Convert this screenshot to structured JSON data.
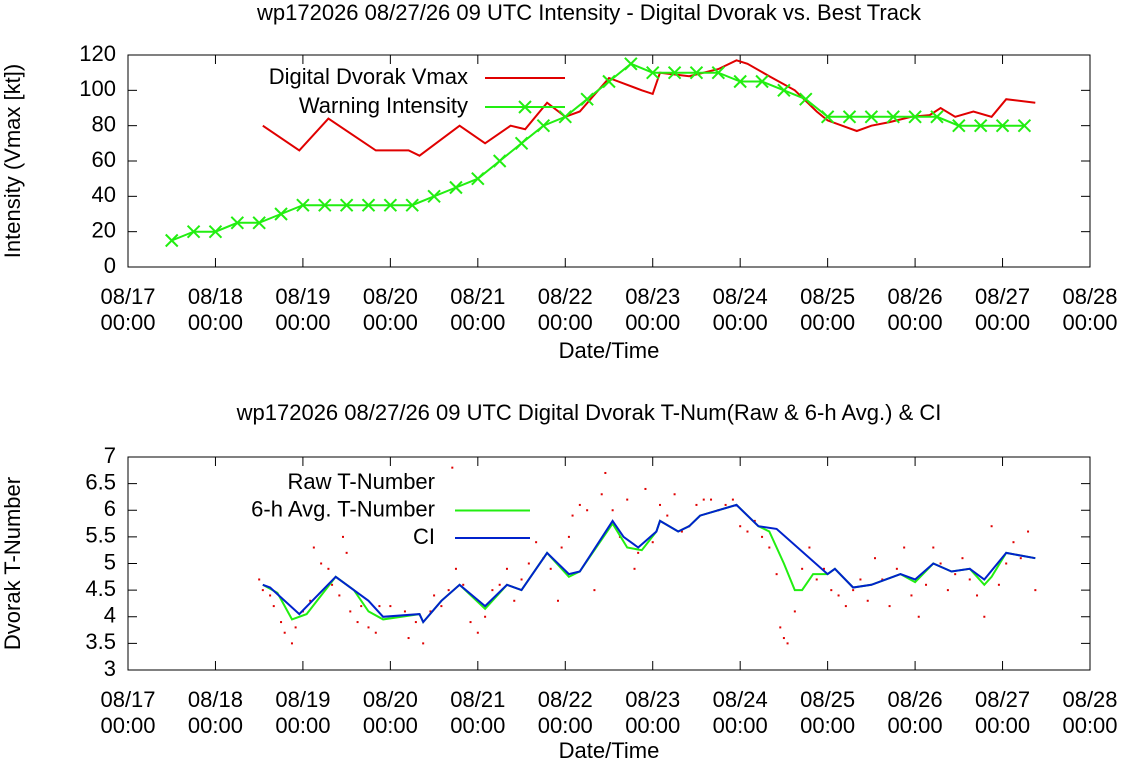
{
  "chart_data": [
    {
      "type": "line",
      "title": "wp172026 08/27/26  09 UTC Intensity - Digital Dvorak vs. Best Track",
      "xlabel": "Date/Time",
      "ylabel": "Intensity (Vmax [kt])",
      "xlim": [
        0,
        264
      ],
      "xticks": [
        {
          "value": 0,
          "label": "08/17 00:00"
        },
        {
          "value": 24,
          "label": "08/18 00:00"
        },
        {
          "value": 48,
          "label": "08/19 00:00"
        },
        {
          "value": 72,
          "label": "08/20 00:00"
        },
        {
          "value": 96,
          "label": "08/21 00:00"
        },
        {
          "value": 120,
          "label": "08/22 00:00"
        },
        {
          "value": 144,
          "label": "08/23 00:00"
        },
        {
          "value": 168,
          "label": "08/24 00:00"
        },
        {
          "value": 192,
          "label": "08/25 00:00"
        },
        {
          "value": 216,
          "label": "08/26 00:00"
        },
        {
          "value": 240,
          "label": "08/27 00:00"
        },
        {
          "value": 264,
          "label": "08/28 00:00"
        }
      ],
      "ylim": [
        0,
        120
      ],
      "yticks": [
        0,
        20,
        40,
        60,
        80,
        100,
        120
      ],
      "legend": "top-left",
      "series": [
        {
          "name": "Digital Dvorak Vmax",
          "color": "#e00000",
          "line": true,
          "marker": null,
          "x": [
            37,
            47,
            55,
            68,
            77,
            80,
            91,
            98,
            105,
            109,
            115,
            120,
            124,
            132,
            141,
            144,
            146,
            154,
            162,
            167,
            170,
            176,
            183,
            189,
            192,
            200,
            204,
            209,
            215,
            220,
            223,
            227,
            232,
            237,
            241,
            249
          ],
          "values": [
            80,
            66,
            84,
            66,
            66,
            63,
            80,
            70,
            80,
            78,
            93,
            85,
            88,
            107,
            100,
            98,
            110,
            108,
            112,
            117,
            115,
            108,
            100,
            88,
            83,
            77,
            80,
            82,
            85,
            86,
            90,
            85,
            88,
            85,
            95,
            93
          ]
        },
        {
          "name": "Warning Intensity",
          "color": "#22ee11",
          "line": true,
          "marker": "x",
          "x": [
            12,
            18,
            24,
            30,
            36,
            42,
            48,
            54,
            60,
            66,
            72,
            78,
            84,
            90,
            96,
            102,
            108,
            114,
            120,
            126,
            132,
            138,
            144,
            150,
            156,
            162,
            168,
            174,
            180,
            186,
            192,
            198,
            204,
            210,
            216,
            222,
            228,
            234,
            240,
            246
          ],
          "values": [
            15,
            20,
            20,
            25,
            25,
            30,
            35,
            35,
            35,
            35,
            35,
            35,
            40,
            45,
            50,
            60,
            70,
            80,
            85,
            95,
            105,
            115,
            110,
            110,
            110,
            110,
            105,
            105,
            100,
            95,
            85,
            85,
            85,
            85,
            85,
            85,
            80,
            80,
            80,
            80
          ]
        }
      ]
    },
    {
      "type": "line",
      "title": "wp172026 08/27/26  09 UTC Digital Dvorak T-Num(Raw & 6-h Avg.) & CI",
      "xlabel": "Date/Time",
      "ylabel": "Dvorak T-Number",
      "xlim": [
        0,
        264
      ],
      "xticks": [
        {
          "value": 0,
          "label": "08/17 00:00"
        },
        {
          "value": 24,
          "label": "08/18 00:00"
        },
        {
          "value": 48,
          "label": "08/19 00:00"
        },
        {
          "value": 72,
          "label": "08/20 00:00"
        },
        {
          "value": 96,
          "label": "08/21 00:00"
        },
        {
          "value": 120,
          "label": "08/22 00:00"
        },
        {
          "value": 144,
          "label": "08/23 00:00"
        },
        {
          "value": 168,
          "label": "08/24 00:00"
        },
        {
          "value": 192,
          "label": "08/25 00:00"
        },
        {
          "value": 216,
          "label": "08/26 00:00"
        },
        {
          "value": 240,
          "label": "08/27 00:00"
        },
        {
          "value": 264,
          "label": "08/28 00:00"
        }
      ],
      "ylim": [
        3,
        7
      ],
      "yticks": [
        3,
        3.5,
        4,
        4.5,
        5,
        5.5,
        6,
        6.5,
        7
      ],
      "legend": "top-left",
      "series": [
        {
          "name": "Raw T-Number",
          "color": "#e00000",
          "line": false,
          "marker": "dot",
          "x": [
            36,
            37,
            39,
            40,
            42,
            43,
            45,
            46,
            48,
            50,
            51,
            53,
            55,
            56,
            58,
            59,
            60,
            61,
            63,
            64,
            66,
            68,
            69,
            72,
            74,
            76,
            77,
            79,
            81,
            83,
            84,
            86,
            88,
            89,
            90,
            92,
            94,
            96,
            98,
            100,
            102,
            104,
            106,
            108,
            110,
            112,
            114,
            116,
            118,
            119,
            121,
            122,
            124,
            126,
            128,
            130,
            131,
            133,
            135,
            137,
            139,
            140,
            142,
            144,
            146,
            148,
            150,
            152,
            154,
            156,
            158,
            160,
            162,
            164,
            166,
            168,
            170,
            172,
            174,
            176,
            178,
            179,
            180,
            181,
            183,
            185,
            187,
            189,
            191,
            193,
            195,
            197,
            199,
            201,
            203,
            205,
            207,
            209,
            211,
            213,
            215,
            217,
            219,
            221,
            223,
            225,
            227,
            229,
            231,
            233,
            235,
            237,
            239,
            241,
            243,
            245,
            247,
            249
          ],
          "values": [
            4.7,
            4.5,
            4.4,
            4.2,
            3.9,
            3.7,
            3.5,
            3.8,
            4.1,
            4.3,
            5.3,
            5.0,
            4.9,
            4.6,
            4.4,
            5.5,
            5.2,
            4.1,
            3.9,
            4.2,
            3.8,
            3.7,
            4.2,
            4.2,
            4.0,
            4.1,
            3.6,
            3.9,
            3.5,
            4.1,
            4.4,
            4.2,
            4.5,
            6.8,
            4.9,
            4.6,
            3.9,
            3.7,
            4.0,
            4.5,
            4.6,
            4.9,
            4.3,
            4.7,
            5.0,
            5.4,
            5.1,
            4.9,
            4.3,
            5.3,
            5.5,
            5.9,
            6.1,
            6.0,
            4.5,
            6.3,
            6.7,
            6.0,
            5.5,
            6.2,
            4.9,
            5.2,
            6.4,
            5.4,
            6.1,
            5.9,
            6.3,
            5.6,
            5.7,
            6.1,
            6.2,
            6.2,
            6.0,
            6.1,
            6.2,
            5.7,
            5.6,
            5.8,
            5.5,
            5.3,
            4.8,
            3.8,
            3.6,
            3.5,
            4.1,
            4.9,
            5.3,
            4.7,
            4.9,
            4.5,
            4.4,
            4.2,
            4.5,
            4.7,
            4.3,
            5.1,
            4.7,
            4.2,
            4.9,
            5.3,
            4.4,
            4.0,
            4.6,
            5.3,
            5.0,
            4.5,
            4.8,
            5.1,
            4.7,
            4.4,
            4.0,
            5.7,
            4.6,
            5.0,
            5.4,
            5.1,
            5.6,
            4.5
          ]
        },
        {
          "name": "6-h Avg. T-Number",
          "color": "#22ee11",
          "line": true,
          "marker": null,
          "x": [
            37,
            41,
            45,
            49,
            57,
            62,
            66,
            70,
            80,
            81,
            86,
            91,
            98,
            104,
            108,
            115,
            121,
            124,
            133,
            137,
            141,
            145,
            146,
            151,
            154,
            157,
            167,
            173,
            176,
            180,
            183,
            185,
            188,
            192,
            194,
            199,
            204,
            212,
            216,
            221,
            226,
            231,
            235,
            237,
            241,
            249
          ],
          "values": [
            4.6,
            4.45,
            3.95,
            4.05,
            4.75,
            4.5,
            4.1,
            3.95,
            4.05,
            3.9,
            4.3,
            4.6,
            4.15,
            4.6,
            4.5,
            5.2,
            4.75,
            4.85,
            5.75,
            5.3,
            5.25,
            5.6,
            5.8,
            5.6,
            5.7,
            5.9,
            6.1,
            5.7,
            5.6,
            5.0,
            4.5,
            4.5,
            4.8,
            4.8,
            4.9,
            4.55,
            4.6,
            4.8,
            4.65,
            5.0,
            4.85,
            4.9,
            4.6,
            4.75,
            5.2,
            5.1
          ]
        },
        {
          "name": "CI",
          "color": "#0022cc",
          "line": true,
          "marker": null,
          "x": [
            37,
            39,
            47,
            57,
            66,
            70,
            80,
            81,
            86,
            91,
            98,
            104,
            108,
            115,
            121,
            124,
            133,
            136,
            140,
            145,
            146,
            151,
            154,
            157,
            167,
            173,
            178,
            192,
            194,
            199,
            204,
            212,
            216,
            221,
            226,
            231,
            235,
            241,
            249
          ],
          "values": [
            4.6,
            4.55,
            4.05,
            4.75,
            4.3,
            4.0,
            4.05,
            3.9,
            4.3,
            4.6,
            4.2,
            4.6,
            4.5,
            5.2,
            4.8,
            4.85,
            5.8,
            5.5,
            5.3,
            5.6,
            5.8,
            5.6,
            5.7,
            5.9,
            6.1,
            5.7,
            5.65,
            4.8,
            4.9,
            4.55,
            4.6,
            4.8,
            4.7,
            5.0,
            4.85,
            4.9,
            4.7,
            5.2,
            5.1
          ]
        }
      ]
    }
  ]
}
